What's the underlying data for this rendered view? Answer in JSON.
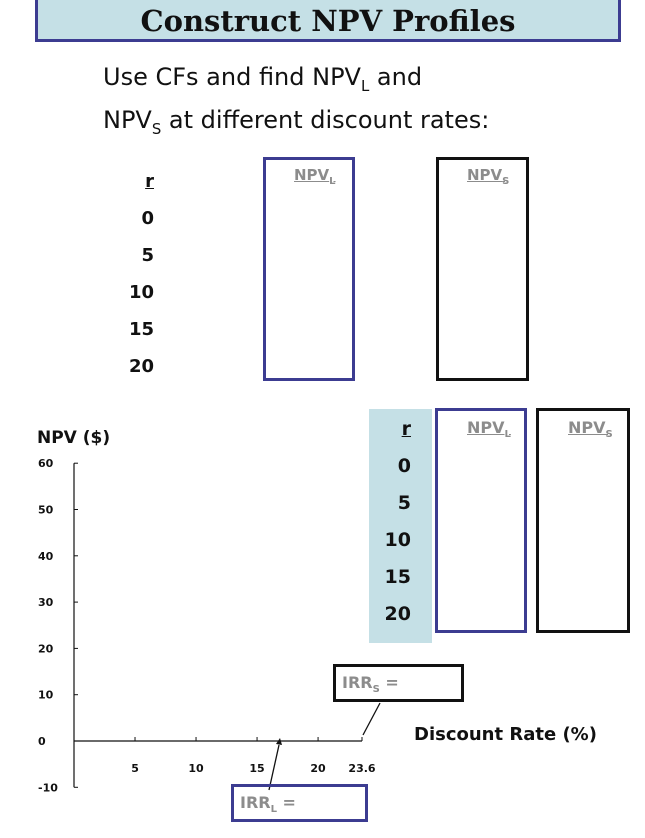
{
  "title": "Construct NPV Profiles",
  "subtitle": {
    "line1_a": "Use CFs and find NPV",
    "line1_sub": "L",
    "line1_b": " and",
    "line2_a": "NPV",
    "line2_sub": "S",
    "line2_b": " at different discount rates:"
  },
  "upper_table": {
    "rate_header": "r",
    "rates": [
      "0",
      "5",
      "10",
      "15",
      "20"
    ],
    "npv_l_label": "NPV",
    "npv_l_sub": "L",
    "npv_s_label": "NPV",
    "npv_s_sub": "S"
  },
  "lower_table": {
    "rate_header": "r",
    "rates": [
      "0",
      "5",
      "10",
      "15",
      "20"
    ],
    "npv_l_label": "NPV",
    "npv_l_sub": "L",
    "npv_s_label": "NPV",
    "npv_s_sub": "S"
  },
  "chart": {
    "ylabel": "NPV ($)",
    "xlabel": "Discount Rate (%)",
    "irr_s_label": "IRR",
    "irr_s_sub": "S",
    "irr_s_suffix": " =",
    "irr_l_label": "IRR",
    "irr_l_sub": "L",
    "irr_l_suffix": " ="
  },
  "colors": {
    "accent": "#3c3c91",
    "teal_fill": "#c5e0e6"
  },
  "chart_data": {
    "type": "line",
    "title": "",
    "xlabel": "Discount Rate (%)",
    "ylabel": "NPV ($)",
    "x_ticks": [
      5,
      10,
      15,
      20,
      23.6
    ],
    "y_ticks": [
      -10,
      0,
      10,
      20,
      30,
      40,
      50,
      60
    ],
    "xlim": [
      0,
      25
    ],
    "ylim": [
      -10,
      60
    ],
    "series": []
  }
}
